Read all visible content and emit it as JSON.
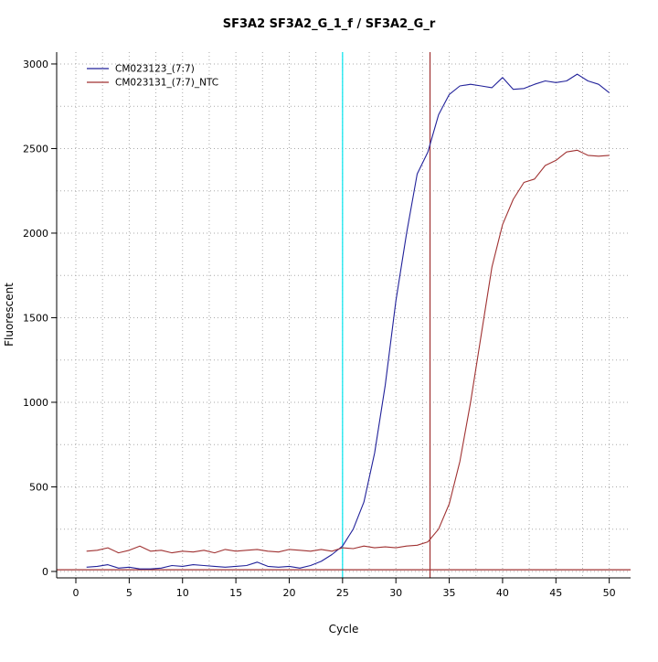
{
  "title": "SF3A2  SF3A2_G_1_f / SF3A2_G_r",
  "chart_data": {
    "type": "line",
    "title": "SF3A2  SF3A2_G_1_f / SF3A2_G_r",
    "xlabel": "Cycle",
    "ylabel": "Fluorescent",
    "xlim": [
      -1.8,
      52.0
    ],
    "ylim": [
      -38,
      3070
    ],
    "xticks": [
      0,
      5,
      10,
      15,
      20,
      25,
      30,
      35,
      40,
      45,
      50
    ],
    "yticks": [
      0,
      500,
      1000,
      1500,
      2000,
      2500,
      3000
    ],
    "grid": {
      "on": true,
      "x_step": 2.5,
      "y_step": 250,
      "style": "dotted",
      "color": "#aaaaaa"
    },
    "x": [
      1,
      2,
      3,
      4,
      5,
      6,
      7,
      8,
      9,
      10,
      11,
      12,
      13,
      14,
      15,
      16,
      17,
      18,
      19,
      20,
      21,
      22,
      23,
      24,
      25,
      26,
      27,
      28,
      29,
      30,
      31,
      32,
      33,
      34,
      35,
      36,
      37,
      38,
      39,
      40,
      41,
      42,
      43,
      44,
      45,
      46,
      47,
      48,
      49,
      50
    ],
    "series": [
      {
        "name": "CM023123_(7:7)",
        "color": "#22229a",
        "values": [
          25,
          30,
          40,
          20,
          25,
          15,
          15,
          20,
          35,
          30,
          40,
          35,
          30,
          25,
          30,
          35,
          55,
          30,
          25,
          30,
          20,
          35,
          60,
          100,
          150,
          250,
          410,
          700,
          1100,
          1600,
          2000,
          2350,
          2480,
          2700,
          2820,
          2870,
          2880,
          2870,
          2860,
          2920,
          2850,
          2855,
          2880,
          2900,
          2890,
          2900,
          2940,
          2900,
          2880,
          2830
        ]
      },
      {
        "name": "CM023131_(7:7)_NTC",
        "color": "#a03232",
        "values": [
          120,
          125,
          140,
          110,
          125,
          150,
          120,
          125,
          110,
          120,
          115,
          125,
          110,
          130,
          120,
          125,
          130,
          120,
          115,
          130,
          125,
          120,
          130,
          120,
          140,
          135,
          150,
          140,
          145,
          140,
          150,
          155,
          175,
          250,
          400,
          650,
          1000,
          1400,
          1800,
          2050,
          2200,
          2300,
          2320,
          2400,
          2430,
          2480,
          2490,
          2460,
          2455,
          2460
        ]
      }
    ],
    "markers": {
      "vlines": [
        {
          "x": 25,
          "color": "#00e5ee",
          "label": "baseline-cursor"
        },
        {
          "x": 33.2,
          "color": "#a03232",
          "label": "ct-cursor"
        }
      ],
      "hlines": [
        {
          "y": 10,
          "color": "#a03232",
          "label": "threshold-line"
        }
      ]
    },
    "legend": {
      "position": "top-left",
      "entries": [
        {
          "label": "CM023123_(7:7)",
          "color": "#22229a"
        },
        {
          "label": "CM023131_(7:7)_NTC",
          "color": "#a03232"
        }
      ]
    }
  }
}
